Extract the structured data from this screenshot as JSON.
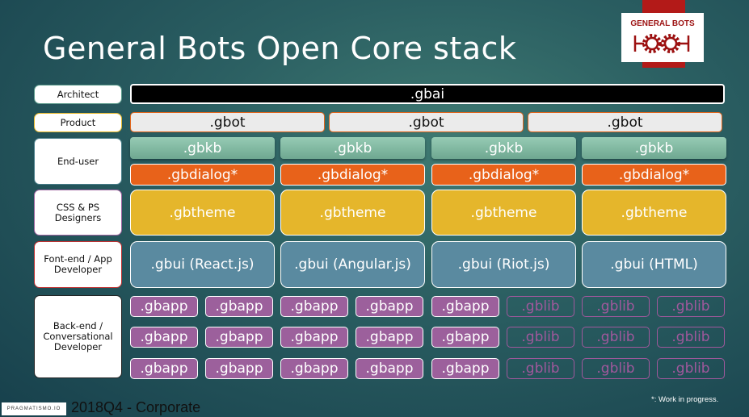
{
  "title": "General Bots Open Core stack",
  "logo": {
    "text": "GENERAL BOTS"
  },
  "roles": [
    "Architect",
    "Product",
    "End-user",
    "CSS & PS Designers",
    "Font-end / App Developer",
    "Back-end / Conversational Developer"
  ],
  "role_colors": [
    "#5a9a8a",
    "#e6b829",
    "#4a7f8a",
    "#a064a0",
    "#c03030",
    "#222222"
  ],
  "gbai": ".gbai",
  "gbot": [
    ".gbot",
    ".gbot",
    ".gbot"
  ],
  "gbkb": [
    ".gbkb",
    ".gbkb",
    ".gbkb",
    ".gbkb"
  ],
  "gbdialog": [
    ".gbdialog*",
    ".gbdialog*",
    ".gbdialog*",
    ".gbdialog*"
  ],
  "gbtheme": [
    ".gbtheme",
    ".gbtheme",
    ".gbtheme",
    ".gbtheme"
  ],
  "gbui": [
    ".gbui (React.js)",
    ".gbui (Angular.js)",
    ".gbui (Riot.js)",
    ".gbui (HTML)"
  ],
  "backend_rows": [
    [
      ".gbapp",
      ".gbapp",
      ".gbapp",
      ".gbapp",
      ".gbapp",
      ".gblib",
      ".gblib",
      ".gblib"
    ],
    [
      ".gbapp",
      ".gbapp",
      ".gbapp",
      ".gbapp",
      ".gbapp",
      ".gblib",
      ".gblib",
      ".gblib"
    ],
    [
      ".gbapp",
      ".gbapp",
      ".gbapp",
      ".gbapp",
      ".gbapp",
      ".gblib",
      ".gblib",
      ".gblib"
    ]
  ],
  "footer": {
    "company": "PRAGMATISMO.IO",
    "text": "2018Q4 - Corporate",
    "note": "*: Work in progress."
  },
  "colors": {
    "gbai": "#000000",
    "gbot": "#ebebeb",
    "gbkb": "#84bca4",
    "gbdialog": "#e8621a",
    "gbtheme": "#e5b62b",
    "gbui": "#5a8aa0",
    "gbapp": "#9c609c",
    "gblib": "#a0589c"
  }
}
